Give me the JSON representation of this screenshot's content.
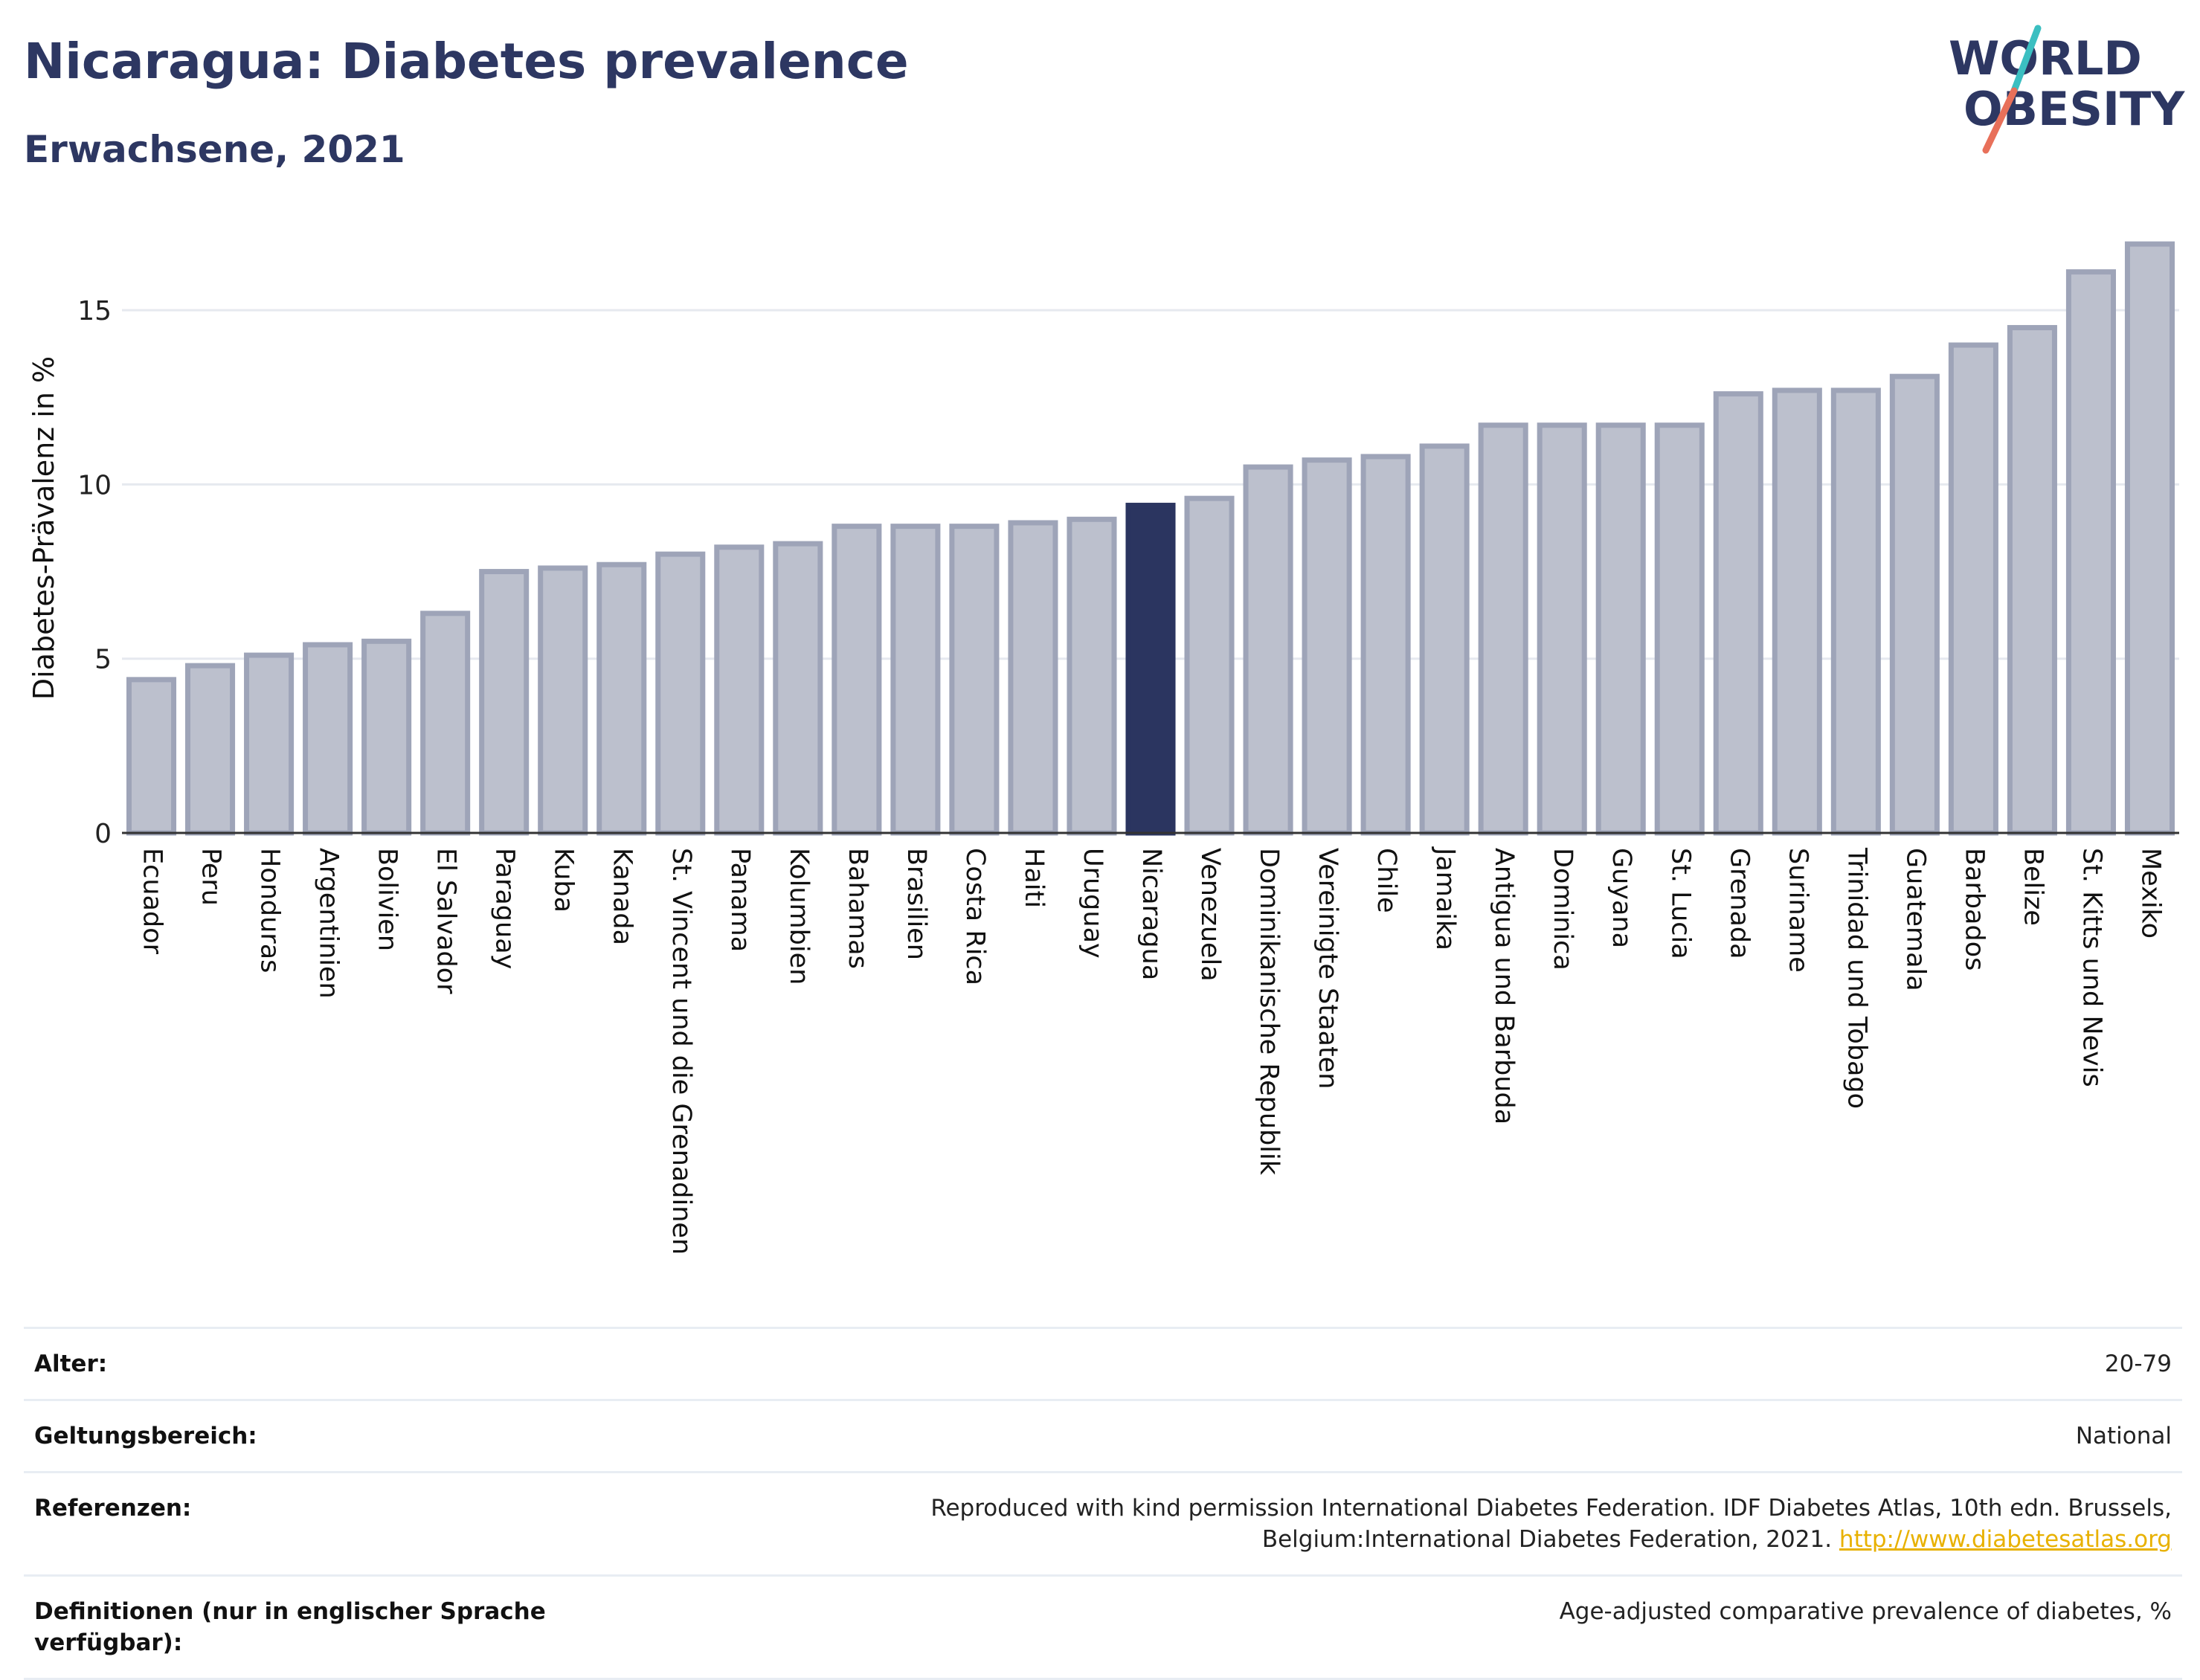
{
  "header": {
    "title": "Nicaragua: Diabetes prevalence",
    "subtitle": "Erwachsene, 2021"
  },
  "logo": {
    "line1": "WORLD",
    "line2": "OBESITY",
    "accent_teal": "#3bbfc1",
    "accent_coral": "#e8705a"
  },
  "colors": {
    "bar": "#bcc0cd",
    "bar_stroke": "#9ea4b8",
    "highlight": "#2b3560",
    "grid": "#e6e9ef"
  },
  "chart_data": {
    "type": "bar",
    "title": "",
    "xlabel": "",
    "ylabel": "Diabetes-Prävalenz in %",
    "ylim": [
      0,
      17.5
    ],
    "yticks": [
      0,
      5,
      10,
      15
    ],
    "grid": true,
    "highlight": "Nicaragua",
    "categories": [
      "Ecuador",
      "Peru",
      "Honduras",
      "Argentinien",
      "Bolivien",
      "El Salvador",
      "Paraguay",
      "Kuba",
      "Kanada",
      "St. Vincent und die Grenadinen",
      "Panama",
      "Kolumbien",
      "Bahamas",
      "Brasilien",
      "Costa Rica",
      "Haiti",
      "Uruguay",
      "Nicaragua",
      "Venezuela",
      "Dominikanische Republik",
      "Vereinigte Staaten",
      "Chile",
      "Jamaika",
      "Antigua und Barbuda",
      "Dominica",
      "Guyana",
      "St. Lucia",
      "Grenada",
      "Suriname",
      "Trinidad und Tobago",
      "Guatemala",
      "Barbados",
      "Belize",
      "St. Kitts und Nevis",
      "Mexiko"
    ],
    "values": [
      4.4,
      4.8,
      5.1,
      5.4,
      5.5,
      6.3,
      7.5,
      7.6,
      7.7,
      8.0,
      8.2,
      8.3,
      8.8,
      8.8,
      8.8,
      8.9,
      9.0,
      9.4,
      9.6,
      10.5,
      10.7,
      10.8,
      11.1,
      11.7,
      11.7,
      11.7,
      11.7,
      12.6,
      12.7,
      12.7,
      13.1,
      14.0,
      14.5,
      16.1,
      16.9
    ]
  },
  "meta": [
    {
      "label": "Alter:",
      "value": "20-79"
    },
    {
      "label": "Geltungsbereich:",
      "value": "National"
    },
    {
      "label": "Referenzen:",
      "value": "Reproduced with kind permission International Diabetes Federation.  IDF Diabetes Atlas, 10th edn. Brussels, Belgium:International Diabetes Federation, 2021.",
      "link": "http://www.diabetesatlas.org"
    },
    {
      "label": "Definitionen (nur in englischer Sprache verfügbar):",
      "value": "Age-adjusted comparative prevalence of diabetes, %"
    }
  ]
}
